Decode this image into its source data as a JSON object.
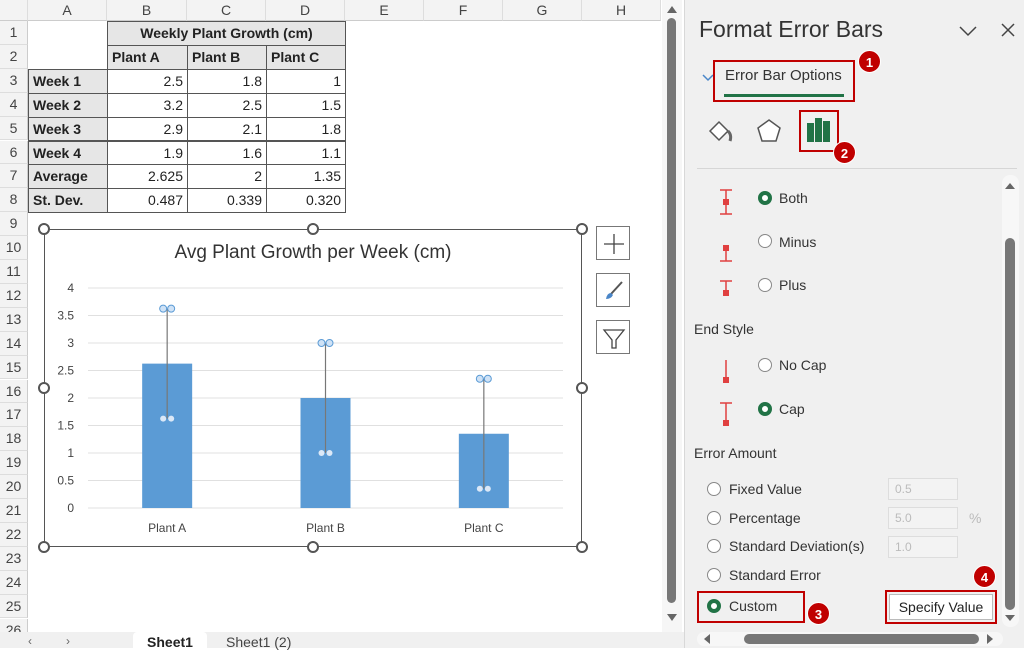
{
  "sheet": {
    "columns": [
      "A",
      "B",
      "C",
      "D",
      "E",
      "F",
      "G",
      "H"
    ],
    "rows": [
      "1",
      "2",
      "3",
      "4",
      "5",
      "6",
      "7",
      "8",
      "9",
      "10",
      "11",
      "12",
      "13",
      "14",
      "15",
      "16",
      "17",
      "18",
      "19",
      "20",
      "21",
      "22",
      "23",
      "24",
      "25",
      "26"
    ],
    "table_title": "Weekly Plant Growth (cm)",
    "headers": [
      "Plant A",
      "Plant B",
      "Plant C"
    ],
    "data": [
      {
        "label": "Week 1",
        "values": [
          "2.5",
          "1.8",
          "1"
        ]
      },
      {
        "label": "Week 2",
        "values": [
          "3.2",
          "2.5",
          "1.5"
        ]
      },
      {
        "label": "Week 3",
        "values": [
          "2.9",
          "2.1",
          "1.8"
        ]
      },
      {
        "label": "Week 4",
        "values": [
          "1.9",
          "1.6",
          "1.1"
        ]
      },
      {
        "label": "Average",
        "values": [
          "2.625",
          "2",
          "1.35"
        ]
      },
      {
        "label": "St. Dev.",
        "values": [
          "0.487",
          "0.339",
          "0.320"
        ]
      }
    ],
    "tabs": [
      "Sheet1",
      "Sheet1 (2)"
    ]
  },
  "chart_data": {
    "type": "bar",
    "title": "Avg Plant Growth per Week (cm)",
    "categories": [
      "Plant A",
      "Plant B",
      "Plant C"
    ],
    "values": [
      2.625,
      2,
      1.35
    ],
    "error_bars": {
      "plus": [
        1,
        1,
        1
      ],
      "minus": [
        1,
        1,
        1
      ]
    },
    "ylim": [
      0,
      4
    ],
    "yticks": [
      "0",
      "0.5",
      "1",
      "1.5",
      "2",
      "2.5",
      "3",
      "3.5",
      "4"
    ],
    "grid": true,
    "bar_color": "#5b9bd5",
    "xlabel": "",
    "ylabel": ""
  },
  "panel": {
    "title": "Format Error Bars",
    "tab_label": "Error Bar Options",
    "direction": {
      "both": "Both",
      "minus": "Minus",
      "plus": "Plus",
      "selected": "Both"
    },
    "end_style": {
      "heading": "End Style",
      "no_cap": "No Cap",
      "cap": "Cap",
      "selected": "Cap"
    },
    "error_amount": {
      "heading": "Error Amount",
      "fixed_value": "Fixed Value",
      "fixed_value_input": "0.5",
      "percentage": "Percentage",
      "percentage_input": "5.0",
      "percent_sign": "%",
      "std_dev": "Standard Deviation(s)",
      "std_dev_input": "1.0",
      "std_error": "Standard Error",
      "custom": "Custom",
      "selected": "Custom",
      "specify_value": "Specify Value"
    },
    "badges": [
      "1",
      "2",
      "3",
      "4"
    ],
    "accent": "#217346",
    "highlight": "#c00000"
  }
}
